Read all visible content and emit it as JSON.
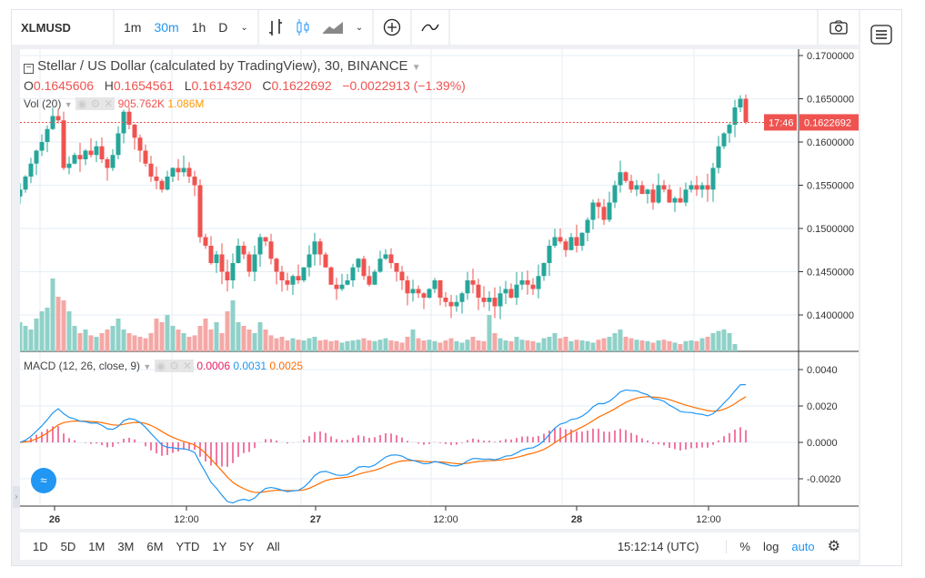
{
  "toolbar": {
    "symbol": "XLMUSD",
    "intervals": [
      "1m",
      "30m",
      "1h",
      "D"
    ],
    "active_interval": "30m"
  },
  "legend": {
    "title": "Stellar / US Dollar (calculated by TradingView), 30, BINANCE",
    "o_label": "O",
    "o": "0.1645606",
    "h_label": "H",
    "h": "0.1654561",
    "l_label": "L",
    "l": "0.1614320",
    "c_label": "C",
    "c": "0.1622692",
    "change": "−0.0022913 (−1.39%)"
  },
  "vol": {
    "label": "Vol (20)",
    "value": "905.762K",
    "ma": "1.086M"
  },
  "macd": {
    "label": "MACD (12, 26, close, 9)",
    "hist": "0.0006",
    "macd": "0.0031",
    "signal": "0.0025"
  },
  "price_axis": [
    "0.1700000",
    "0.1650000",
    "0.1600000",
    "0.1550000",
    "0.1500000",
    "0.1450000",
    "0.1400000"
  ],
  "macd_axis": [
    "0.0040",
    "0.0020",
    "0.0000",
    "-0.0020"
  ],
  "last_price": "0.1622692",
  "countdown": "17:46",
  "time_axis": [
    "26",
    "12:00",
    "27",
    "12:00",
    "28",
    "12:00"
  ],
  "ranges": [
    "1D",
    "5D",
    "1M",
    "3M",
    "6M",
    "YTD",
    "1Y",
    "5Y",
    "All"
  ],
  "clock": "15:12:14 (UTC)",
  "bottom_right": {
    "percent": "%",
    "log": "log",
    "auto": "auto"
  },
  "colors": {
    "up": "#26a69a",
    "down": "#ef5350",
    "macd": "#2196f3",
    "signal": "#ff6d00",
    "hist": "#e91e63"
  },
  "chart_data": {
    "type": "candlestick",
    "interval": "30m",
    "price_range": [
      0.1365,
      0.1715
    ],
    "closes": [
      0.1545,
      0.156,
      0.1575,
      0.159,
      0.16,
      0.1615,
      0.163,
      0.1625,
      0.157,
      0.1575,
      0.1585,
      0.158,
      0.159,
      0.1585,
      0.1595,
      0.158,
      0.157,
      0.1585,
      0.161,
      0.1635,
      0.162,
      0.1605,
      0.159,
      0.1575,
      0.156,
      0.1555,
      0.1545,
      0.156,
      0.157,
      0.1565,
      0.157,
      0.156,
      0.155,
      0.149,
      0.148,
      0.146,
      0.147,
      0.145,
      0.144,
      0.146,
      0.148,
      0.147,
      0.145,
      0.147,
      0.149,
      0.1485,
      0.1465,
      0.145,
      0.144,
      0.1435,
      0.1445,
      0.144,
      0.1455,
      0.147,
      0.1485,
      0.147,
      0.1455,
      0.1435,
      0.143,
      0.1435,
      0.144,
      0.1455,
      0.1465,
      0.1445,
      0.1435,
      0.145,
      0.1465,
      0.147,
      0.146,
      0.145,
      0.144,
      0.1425,
      0.143,
      0.1425,
      0.142,
      0.143,
      0.144,
      0.142,
      0.1415,
      0.141,
      0.1415,
      0.1425,
      0.144,
      0.1435,
      0.142,
      0.1415,
      0.142,
      0.141,
      0.1425,
      0.143,
      0.142,
      0.1435,
      0.144,
      0.1435,
      0.143,
      0.1445,
      0.146,
      0.148,
      0.149,
      0.1485,
      0.1475,
      0.149,
      0.148,
      0.1495,
      0.151,
      0.153,
      0.1525,
      0.151,
      0.153,
      0.155,
      0.1565,
      0.1555,
      0.1545,
      0.155,
      0.154,
      0.1545,
      0.153,
      0.155,
      0.1545,
      0.153,
      0.1535,
      0.153,
      0.1545,
      0.155,
      0.1545,
      0.155,
      0.1545,
      0.157,
      0.1595,
      0.161,
      0.162,
      0.164,
      0.165,
      0.1623
    ],
    "volumes": [
      40,
      35,
      30,
      45,
      55,
      60,
      100,
      75,
      70,
      55,
      35,
      25,
      30,
      22,
      20,
      25,
      30,
      35,
      45,
      30,
      25,
      22,
      20,
      18,
      25,
      45,
      40,
      50,
      35,
      30,
      25,
      20,
      22,
      35,
      45,
      30,
      40,
      25,
      55,
      70,
      40,
      35,
      30,
      25,
      40,
      30,
      22,
      18,
      20,
      15,
      18,
      16,
      15,
      18,
      20,
      15,
      16,
      14,
      15,
      12,
      14,
      15,
      16,
      18,
      15,
      14,
      16,
      18,
      15,
      14,
      12,
      20,
      30,
      18,
      15,
      16,
      14,
      12,
      15,
      18,
      14,
      12,
      16,
      20,
      15,
      14,
      50,
      25,
      18,
      15,
      14,
      20,
      16,
      15,
      14,
      12,
      18,
      20,
      25,
      18,
      20,
      14,
      16,
      15,
      14,
      12,
      16,
      18,
      20,
      25,
      30,
      20,
      18,
      16,
      15,
      14,
      12,
      15,
      16,
      14,
      12,
      10,
      14,
      15,
      14,
      18,
      20,
      25,
      28,
      30,
      25,
      10
    ]
  }
}
